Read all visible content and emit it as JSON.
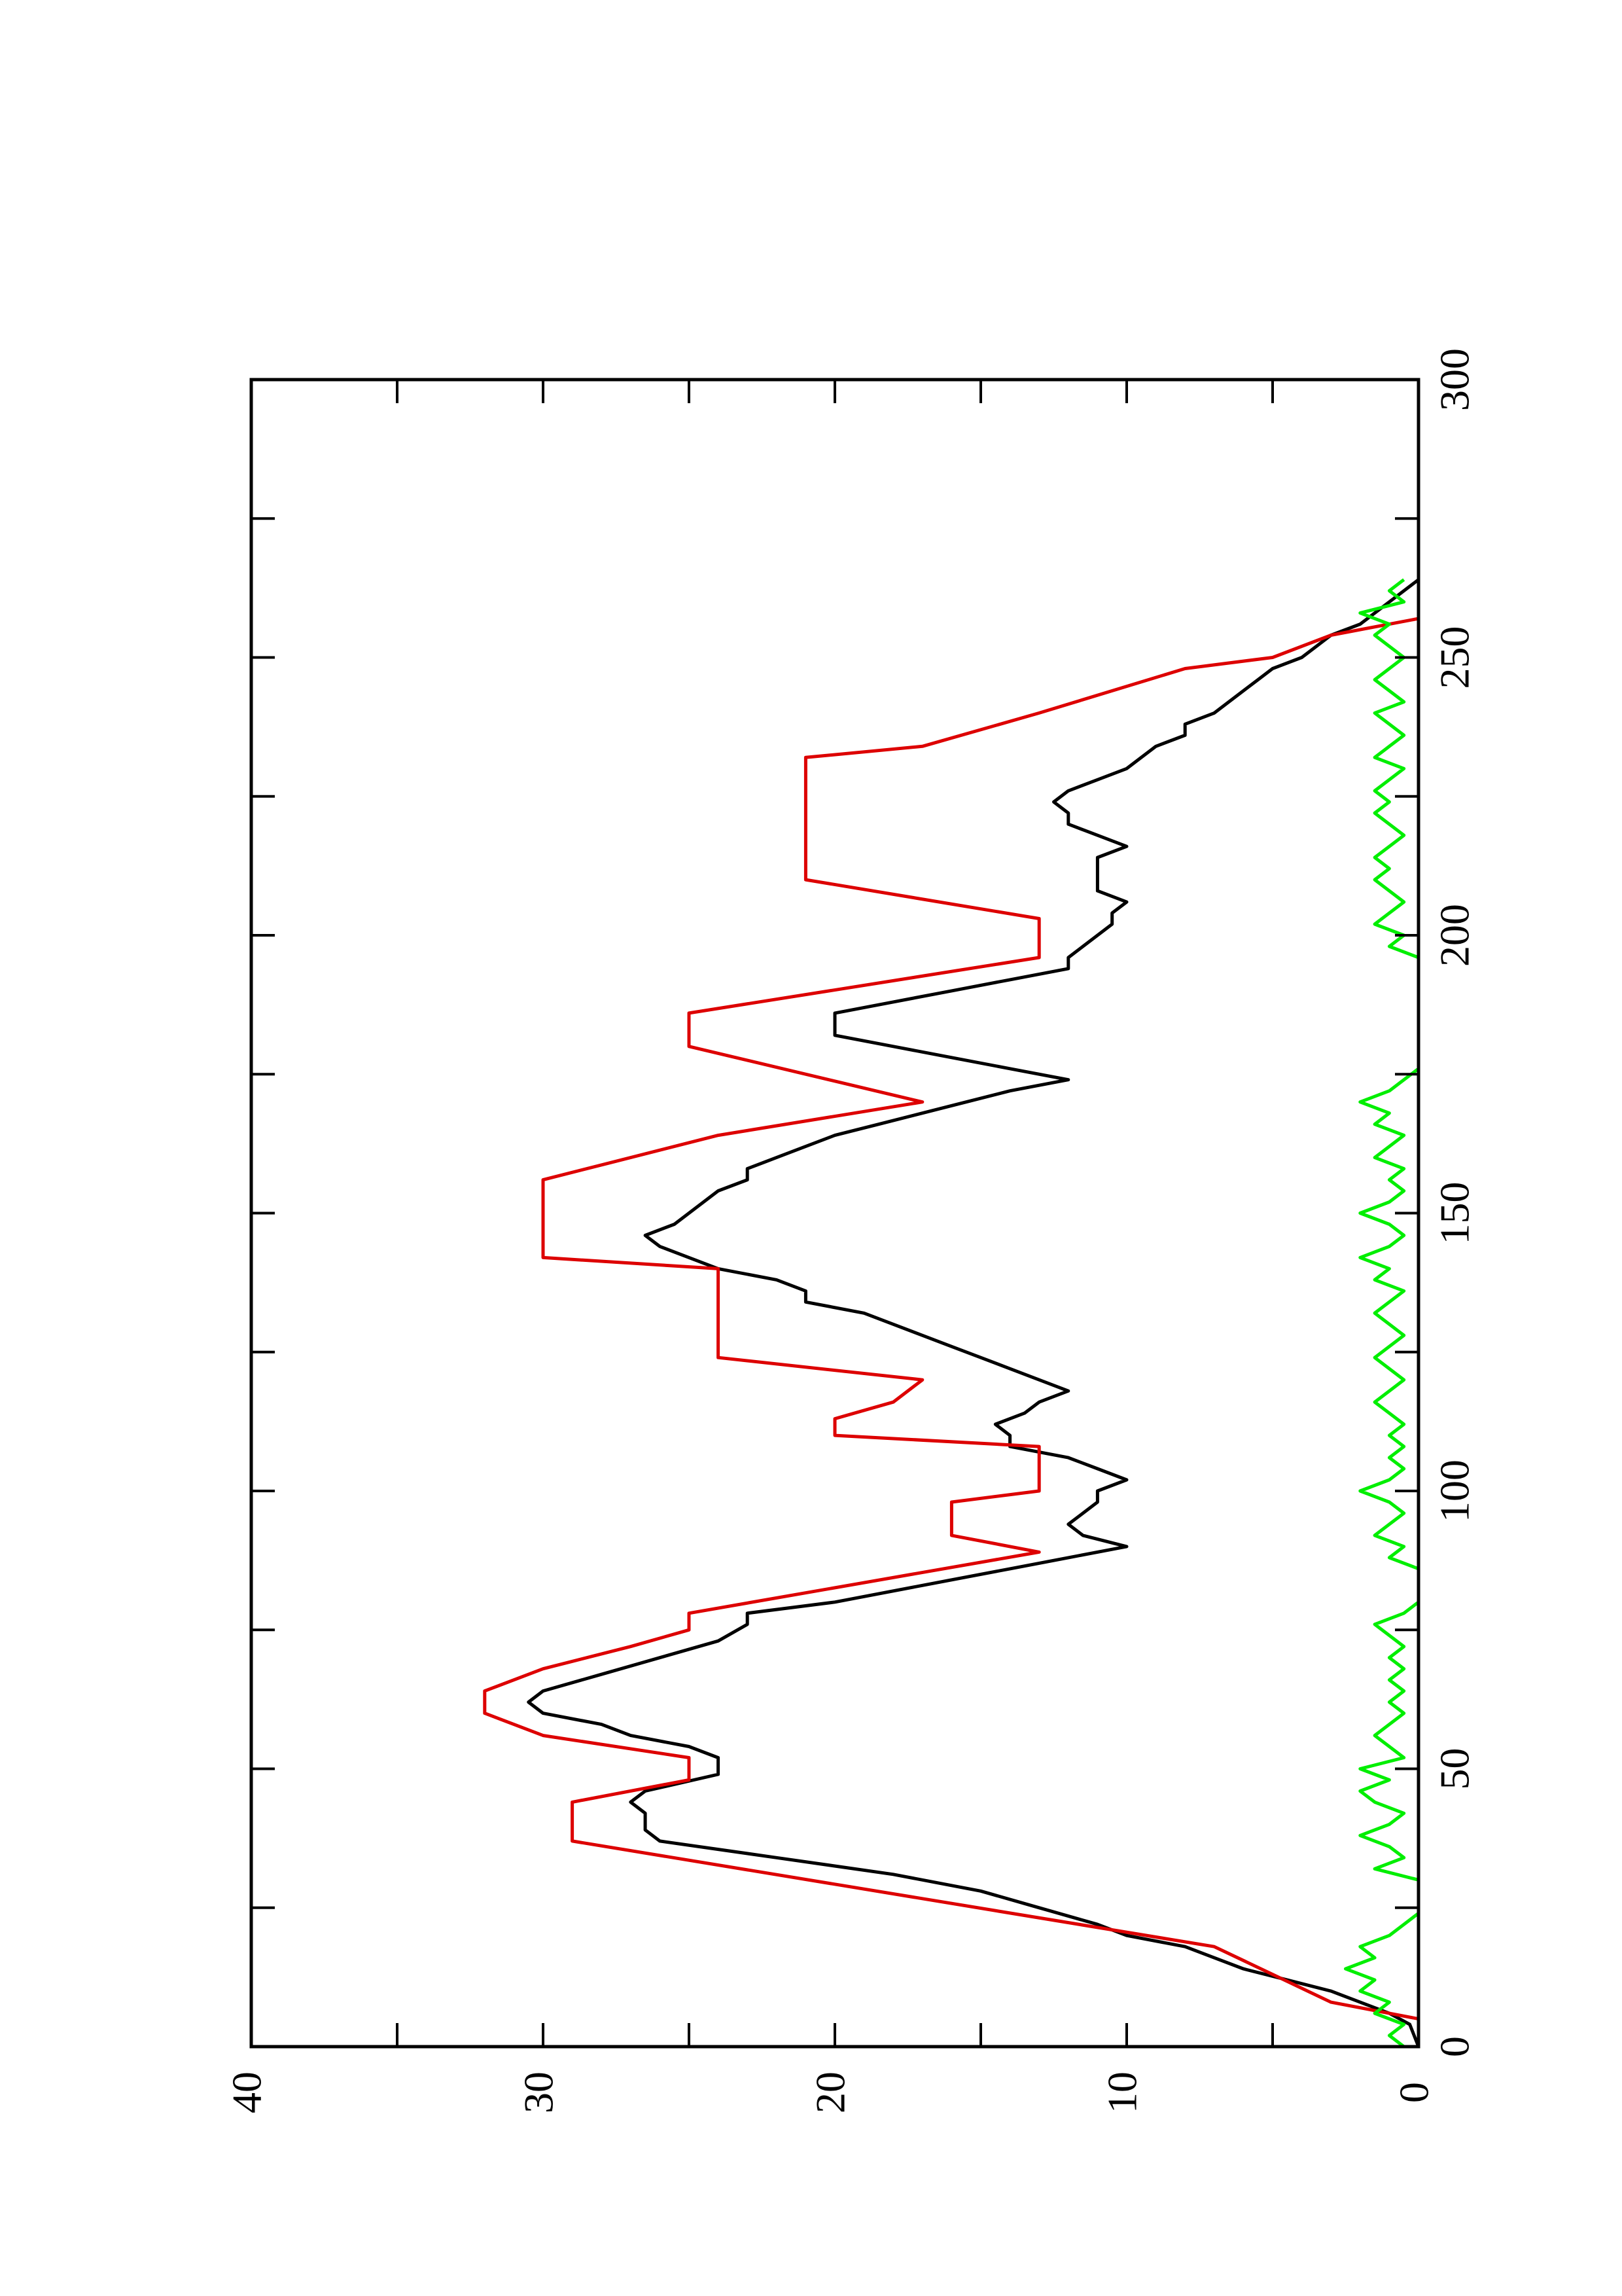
{
  "chart_data": {
    "type": "line",
    "orientation": "rotated-90-ccw",
    "title": "",
    "xlabel": "",
    "ylabel": "",
    "xlim": [
      0,
      300
    ],
    "ylim": [
      0,
      40
    ],
    "x_ticks": [
      0,
      50,
      100,
      150,
      200,
      250,
      300
    ],
    "x_tick_labels": [
      "0",
      "50",
      "100",
      "150",
      "200",
      "250",
      "300"
    ],
    "y_ticks": [
      0,
      10,
      20,
      30,
      40
    ],
    "y_tick_labels": [
      "0",
      "10",
      "20",
      "30",
      "40"
    ],
    "grid": false,
    "legend": "none",
    "series": [
      {
        "color": "#000000",
        "points": [
          [
            0,
            0
          ],
          [
            4,
            0.3
          ],
          [
            6,
            1
          ],
          [
            8,
            2
          ],
          [
            10,
            3
          ],
          [
            12,
            4.5
          ],
          [
            14,
            6
          ],
          [
            16,
            7
          ],
          [
            18,
            8
          ],
          [
            20,
            10
          ],
          [
            22,
            11
          ],
          [
            25,
            13
          ],
          [
            28,
            15
          ],
          [
            31,
            18
          ],
          [
            34,
            22
          ],
          [
            37,
            26
          ],
          [
            39,
            26.5
          ],
          [
            42,
            26.5
          ],
          [
            44,
            27
          ],
          [
            46,
            26.5
          ],
          [
            49,
            24
          ],
          [
            52,
            24
          ],
          [
            54,
            25
          ],
          [
            56,
            27
          ],
          [
            58,
            28
          ],
          [
            60,
            30
          ],
          [
            62,
            30.5
          ],
          [
            64,
            30
          ],
          [
            67,
            28
          ],
          [
            70,
            26
          ],
          [
            73,
            24
          ],
          [
            76,
            23
          ],
          [
            78,
            23
          ],
          [
            80,
            20
          ],
          [
            83,
            17
          ],
          [
            86,
            14
          ],
          [
            88,
            12
          ],
          [
            90,
            10
          ],
          [
            92,
            11.5
          ],
          [
            94,
            12
          ],
          [
            96,
            11.5
          ],
          [
            98,
            11
          ],
          [
            100,
            11
          ],
          [
            102,
            10
          ],
          [
            104,
            11
          ],
          [
            106,
            12
          ],
          [
            108,
            14
          ],
          [
            110,
            14
          ],
          [
            112,
            14.5
          ],
          [
            114,
            13.5
          ],
          [
            116,
            13
          ],
          [
            118,
            12
          ],
          [
            120,
            13
          ],
          [
            122,
            14
          ],
          [
            124,
            15
          ],
          [
            126,
            16
          ],
          [
            128,
            17
          ],
          [
            130,
            18
          ],
          [
            132,
            19
          ],
          [
            134,
            21
          ],
          [
            136,
            21
          ],
          [
            138,
            22
          ],
          [
            140,
            24
          ],
          [
            142,
            25
          ],
          [
            144,
            26
          ],
          [
            146,
            26.5
          ],
          [
            148,
            25.5
          ],
          [
            150,
            25
          ],
          [
            152,
            24.5
          ],
          [
            154,
            24
          ],
          [
            156,
            23
          ],
          [
            158,
            23
          ],
          [
            160,
            22
          ],
          [
            162,
            21
          ],
          [
            164,
            20
          ],
          [
            166,
            18.5
          ],
          [
            168,
            17
          ],
          [
            170,
            15.5
          ],
          [
            172,
            14
          ],
          [
            174,
            12
          ],
          [
            176,
            14
          ],
          [
            178,
            16
          ],
          [
            180,
            18
          ],
          [
            182,
            20
          ],
          [
            184,
            20
          ],
          [
            186,
            20
          ],
          [
            188,
            18
          ],
          [
            190,
            16
          ],
          [
            192,
            14
          ],
          [
            194,
            12
          ],
          [
            196,
            12
          ],
          [
            198,
            11.5
          ],
          [
            200,
            11
          ],
          [
            202,
            10.5
          ],
          [
            204,
            10.5
          ],
          [
            206,
            10
          ],
          [
            208,
            11
          ],
          [
            210,
            11
          ],
          [
            212,
            11
          ],
          [
            214,
            11
          ],
          [
            216,
            10
          ],
          [
            218,
            11
          ],
          [
            220,
            12
          ],
          [
            222,
            12
          ],
          [
            224,
            12.5
          ],
          [
            226,
            12
          ],
          [
            228,
            11
          ],
          [
            230,
            10
          ],
          [
            232,
            9.5
          ],
          [
            234,
            9
          ],
          [
            236,
            8
          ],
          [
            238,
            8
          ],
          [
            240,
            7
          ],
          [
            242,
            6.5
          ],
          [
            244,
            6
          ],
          [
            246,
            5.5
          ],
          [
            248,
            5
          ],
          [
            250,
            4
          ],
          [
            252,
            3.5
          ],
          [
            254,
            3
          ],
          [
            256,
            2
          ],
          [
            258,
            1.5
          ],
          [
            260,
            1
          ],
          [
            262,
            0.5
          ],
          [
            264,
            0
          ]
        ]
      },
      {
        "color": "#dd0000",
        "points": [
          [
            5,
            0
          ],
          [
            8,
            3
          ],
          [
            13,
            5
          ],
          [
            18,
            7
          ],
          [
            37,
            29
          ],
          [
            44,
            29
          ],
          [
            48,
            25
          ],
          [
            52,
            25
          ],
          [
            56,
            30
          ],
          [
            60,
            32
          ],
          [
            64,
            32
          ],
          [
            68,
            30
          ],
          [
            72,
            27
          ],
          [
            75,
            25
          ],
          [
            78,
            25
          ],
          [
            89,
            13
          ],
          [
            92,
            16
          ],
          [
            98,
            16
          ],
          [
            100,
            13
          ],
          [
            108,
            13
          ],
          [
            110,
            20
          ],
          [
            113,
            20
          ],
          [
            116,
            18
          ],
          [
            120,
            17
          ],
          [
            124,
            24
          ],
          [
            128,
            24
          ],
          [
            140,
            24
          ],
          [
            142,
            30
          ],
          [
            156,
            30
          ],
          [
            164,
            24
          ],
          [
            170,
            17
          ],
          [
            180,
            25
          ],
          [
            186,
            25
          ],
          [
            196,
            13
          ],
          [
            203,
            13
          ],
          [
            210,
            21
          ],
          [
            232,
            21
          ],
          [
            234,
            17
          ],
          [
            240,
            13
          ],
          [
            248,
            8
          ],
          [
            250,
            5
          ],
          [
            254,
            3
          ],
          [
            257,
            0
          ]
        ]
      },
      {
        "color": "#00ee00",
        "points": [
          [
            0,
            0.5
          ],
          [
            2,
            1
          ],
          [
            4,
            0.5
          ],
          [
            6,
            1.5
          ],
          [
            8,
            1
          ],
          [
            10,
            2
          ],
          [
            12,
            1.5
          ],
          [
            14,
            2.5
          ],
          [
            16,
            1.5
          ],
          [
            18,
            2
          ],
          [
            20,
            1
          ],
          [
            22,
            0.5
          ],
          [
            24,
            0
          ],
          [
            30,
            0
          ],
          [
            32,
            1.5
          ],
          [
            34,
            0.5
          ],
          [
            36,
            1
          ],
          [
            38,
            2
          ],
          [
            40,
            1
          ],
          [
            42,
            0.5
          ],
          [
            44,
            1.5
          ],
          [
            46,
            2
          ],
          [
            48,
            1
          ],
          [
            50,
            2
          ],
          [
            52,
            0.5
          ],
          [
            54,
            1
          ],
          [
            56,
            1.5
          ],
          [
            58,
            1
          ],
          [
            60,
            0.5
          ],
          [
            62,
            1
          ],
          [
            64,
            0.5
          ],
          [
            66,
            1
          ],
          [
            68,
            0.5
          ],
          [
            70,
            1
          ],
          [
            72,
            0.5
          ],
          [
            74,
            1
          ],
          [
            76,
            1.5
          ],
          [
            78,
            0.5
          ],
          [
            80,
            0
          ],
          [
            86,
            0
          ],
          [
            88,
            1
          ],
          [
            90,
            0.5
          ],
          [
            92,
            1.5
          ],
          [
            94,
            1
          ],
          [
            96,
            0.5
          ],
          [
            98,
            1
          ],
          [
            100,
            2
          ],
          [
            102,
            1
          ],
          [
            104,
            0.5
          ],
          [
            106,
            1
          ],
          [
            108,
            0.5
          ],
          [
            110,
            1
          ],
          [
            112,
            0.5
          ],
          [
            114,
            1
          ],
          [
            116,
            1.5
          ],
          [
            118,
            1
          ],
          [
            120,
            0.5
          ],
          [
            122,
            1
          ],
          [
            124,
            1.5
          ],
          [
            126,
            1
          ],
          [
            128,
            0.5
          ],
          [
            130,
            1
          ],
          [
            132,
            1.5
          ],
          [
            134,
            1
          ],
          [
            136,
            0.5
          ],
          [
            138,
            1.5
          ],
          [
            140,
            1
          ],
          [
            142,
            2
          ],
          [
            144,
            1
          ],
          [
            146,
            0.5
          ],
          [
            148,
            1
          ],
          [
            150,
            2
          ],
          [
            152,
            1
          ],
          [
            154,
            0.5
          ],
          [
            156,
            1
          ],
          [
            158,
            0.5
          ],
          [
            160,
            1.5
          ],
          [
            162,
            1
          ],
          [
            164,
            0.5
          ],
          [
            166,
            1.5
          ],
          [
            168,
            1
          ],
          [
            170,
            2
          ],
          [
            172,
            1
          ],
          [
            174,
            0.5
          ],
          [
            176,
            0
          ],
          [
            196,
            0
          ],
          [
            198,
            1
          ],
          [
            200,
            0.5
          ],
          [
            202,
            1.5
          ],
          [
            204,
            1
          ],
          [
            206,
            0.5
          ],
          [
            208,
            1
          ],
          [
            210,
            1.5
          ],
          [
            212,
            1
          ],
          [
            214,
            1.5
          ],
          [
            216,
            1
          ],
          [
            218,
            0.5
          ],
          [
            220,
            1
          ],
          [
            222,
            1.5
          ],
          [
            224,
            1
          ],
          [
            226,
            1.5
          ],
          [
            228,
            1
          ],
          [
            230,
            0.5
          ],
          [
            232,
            1.5
          ],
          [
            234,
            1
          ],
          [
            236,
            0.5
          ],
          [
            238,
            1
          ],
          [
            240,
            1.5
          ],
          [
            242,
            0.5
          ],
          [
            244,
            1
          ],
          [
            246,
            1.5
          ],
          [
            248,
            1
          ],
          [
            250,
            0.5
          ],
          [
            252,
            1
          ],
          [
            254,
            1.5
          ],
          [
            256,
            1
          ],
          [
            258,
            2
          ],
          [
            260,
            0.5
          ],
          [
            262,
            1
          ],
          [
            264,
            0.5
          ]
        ]
      }
    ]
  }
}
